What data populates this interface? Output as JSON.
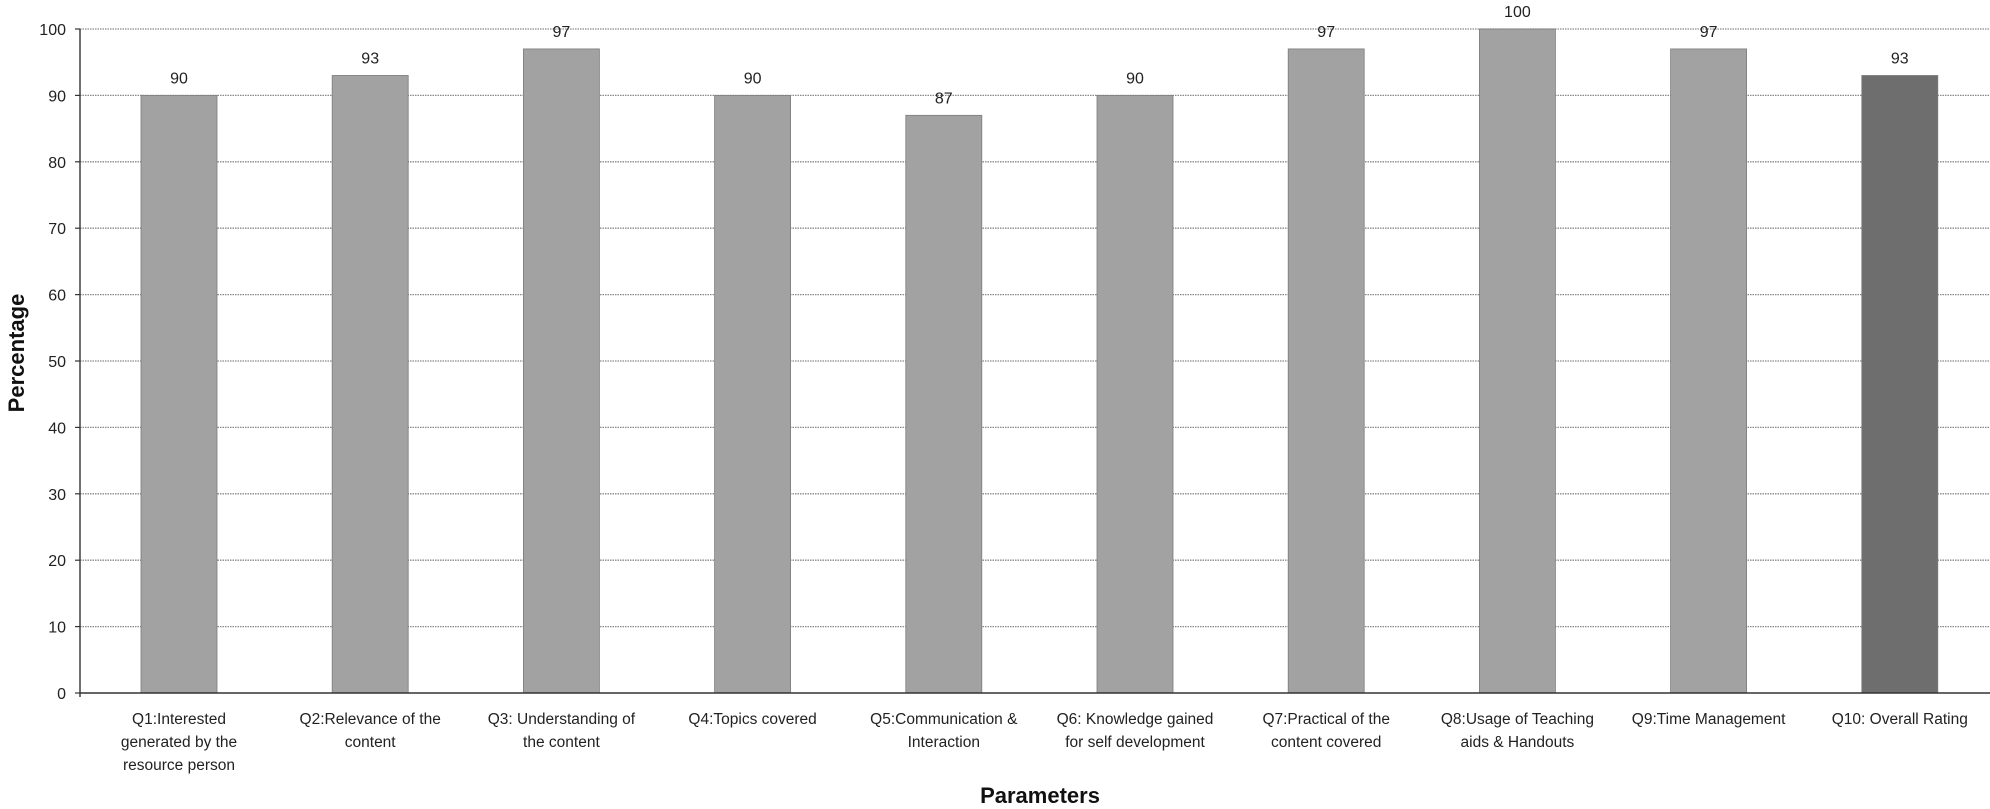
{
  "chart_data": {
    "type": "bar",
    "categories": [
      [
        "Q1:Interested",
        "generated by the",
        "resource person"
      ],
      [
        "Q2:Relevance of the",
        "content"
      ],
      [
        "Q3: Understanding of",
        "the content"
      ],
      [
        "Q4:Topics covered"
      ],
      [
        "Q5:Communication &",
        "Interaction"
      ],
      [
        "Q6: Knowledge gained",
        "for self development"
      ],
      [
        "Q7:Practical of the",
        "content covered"
      ],
      [
        "Q8:Usage of Teaching",
        "aids & Handouts"
      ],
      [
        "Q9:Time Management"
      ],
      [
        "Q10: Overall Rating"
      ]
    ],
    "values": [
      90,
      93,
      97,
      90,
      87,
      90,
      97,
      100,
      97,
      93
    ],
    "data_labels": [
      "90",
      "93",
      "97",
      "90",
      "87",
      "90",
      "97",
      "100",
      "97",
      "93"
    ],
    "title": "",
    "xlabel": "Parameters",
    "ylabel": "Percentage",
    "ylim": [
      0,
      100
    ],
    "yticks": [
      "0",
      "10",
      "20",
      "30",
      "40",
      "50",
      "60",
      "70",
      "80",
      "90",
      "100"
    ],
    "grid": true,
    "legend": "none",
    "colors": {
      "bar": "#a2a2a2",
      "bar_highlight": "#6e6e6e",
      "grid": "#8a8a8a",
      "axis": "#333333"
    }
  }
}
